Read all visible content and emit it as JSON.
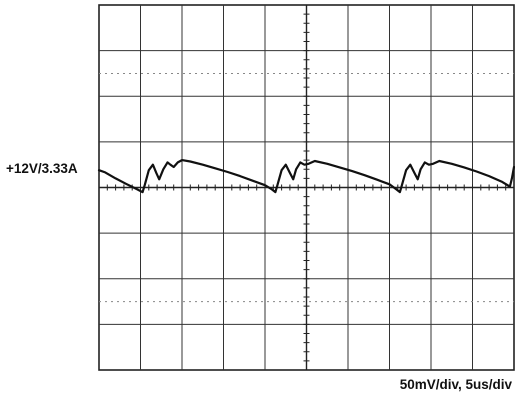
{
  "chart_data": {
    "type": "line",
    "title": "",
    "xlabel": "",
    "ylabel": "",
    "grid": true,
    "divisions": {
      "x": 10,
      "y": 8
    },
    "trace_label": "+12V/3.33A",
    "scale_label": "50mV/div,  5us/div",
    "x_unit": "div",
    "y_unit": "div from center",
    "xlim": [
      0,
      10
    ],
    "ylim": [
      -4,
      4
    ],
    "series": [
      {
        "x": [
          0,
          0.15,
          0.4,
          0.65,
          0.9,
          1.05,
          1.1,
          1.2,
          1.3,
          1.38,
          1.45,
          1.55,
          1.65,
          1.72,
          1.8,
          1.9,
          2.0,
          2.2,
          2.5,
          2.8,
          3.1,
          3.4,
          3.7,
          4.0,
          4.15,
          4.25,
          4.3,
          4.4,
          4.5,
          4.6,
          4.68,
          4.75,
          4.85,
          4.95,
          5.05,
          5.2,
          5.5,
          5.8,
          6.1,
          6.4,
          6.7,
          7.0,
          7.15,
          7.25,
          7.3,
          7.4,
          7.5,
          7.6,
          7.68,
          7.75,
          7.85,
          7.95,
          8.05,
          8.2,
          8.5,
          8.8,
          9.1,
          9.4,
          9.7,
          9.9,
          9.95,
          10.0
        ],
        "y": [
          0.38,
          0.33,
          0.2,
          0.08,
          -0.03,
          -0.1,
          0.05,
          0.38,
          0.5,
          0.32,
          0.18,
          0.4,
          0.55,
          0.5,
          0.45,
          0.55,
          0.6,
          0.57,
          0.5,
          0.42,
          0.34,
          0.25,
          0.15,
          0.05,
          -0.03,
          -0.1,
          0.05,
          0.38,
          0.5,
          0.32,
          0.18,
          0.4,
          0.55,
          0.5,
          0.52,
          0.58,
          0.52,
          0.44,
          0.36,
          0.27,
          0.17,
          0.07,
          -0.03,
          -0.1,
          0.05,
          0.38,
          0.5,
          0.32,
          0.18,
          0.4,
          0.55,
          0.5,
          0.52,
          0.58,
          0.52,
          0.44,
          0.35,
          0.25,
          0.13,
          0.02,
          0.2,
          0.45
        ]
      }
    ]
  }
}
